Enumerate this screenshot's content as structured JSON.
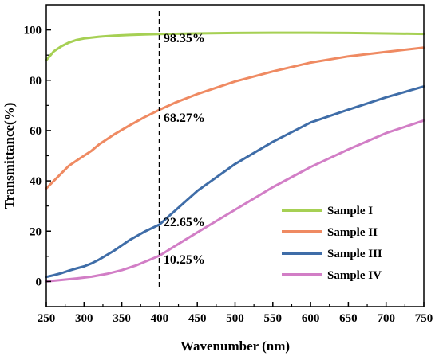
{
  "chart_data": {
    "type": "line",
    "title": "",
    "xlabel": "Wavenumber (nm)",
    "ylabel": "Transmittance(%)",
    "xlim": [
      250,
      750
    ],
    "ylim": [
      -10,
      110
    ],
    "xticks": [
      250,
      300,
      350,
      400,
      450,
      500,
      550,
      600,
      650,
      700,
      750
    ],
    "yticks": [
      0,
      20,
      40,
      60,
      80,
      100
    ],
    "grid": false,
    "legend_position": "bottom-right",
    "reference_line": {
      "x": 400,
      "style": "dashed",
      "color": "#000000"
    },
    "annotations": [
      {
        "text": "98.35%",
        "x": 400,
        "y": 98.35
      },
      {
        "text": "68.27%",
        "x": 400,
        "y": 68.27
      },
      {
        "text": "22.65%",
        "x": 400,
        "y": 22.65
      },
      {
        "text": "10.25%",
        "x": 400,
        "y": 10.25
      }
    ],
    "series": [
      {
        "name": "Sample I",
        "color": "#a6d054",
        "x": [
          250,
          260,
          270,
          280,
          290,
          300,
          320,
          340,
          360,
          380,
          400,
          450,
          500,
          550,
          600,
          650,
          700,
          750
        ],
        "values": [
          88,
          91.5,
          93.5,
          95,
          96,
          96.6,
          97.3,
          97.7,
          98,
          98.2,
          98.35,
          98.6,
          98.8,
          98.9,
          98.9,
          98.8,
          98.6,
          98.4
        ]
      },
      {
        "name": "Sample II",
        "color": "#ef8a62",
        "x": [
          250,
          260,
          270,
          280,
          290,
          300,
          310,
          320,
          340,
          360,
          380,
          400,
          420,
          450,
          500,
          550,
          600,
          650,
          700,
          750
        ],
        "values": [
          37,
          40,
          43,
          46,
          48,
          50,
          52,
          54.5,
          58.5,
          62,
          65.3,
          68.27,
          71,
          74.5,
          79.5,
          83.5,
          87,
          89.5,
          91.3,
          93
        ]
      },
      {
        "name": "Sample III",
        "color": "#3f6da8",
        "x": [
          250,
          260,
          270,
          280,
          290,
          300,
          310,
          320,
          340,
          360,
          380,
          400,
          420,
          450,
          500,
          550,
          600,
          650,
          700,
          750
        ],
        "values": [
          1.8,
          2.5,
          3.3,
          4.3,
          5.2,
          6,
          7.2,
          8.7,
          12.3,
          16.4,
          19.8,
          22.65,
          28,
          36,
          46.7,
          55.5,
          63.2,
          68.3,
          73.2,
          77.5
        ]
      },
      {
        "name": "Sample IV",
        "color": "#d27ec6",
        "x": [
          250,
          270,
          290,
          310,
          330,
          350,
          370,
          390,
          400,
          420,
          450,
          500,
          550,
          600,
          650,
          700,
          750
        ],
        "values": [
          0,
          0.6,
          1.2,
          1.9,
          3,
          4.5,
          6.5,
          9,
          10.25,
          14,
          19.5,
          28.5,
          37.5,
          45.5,
          52.5,
          59,
          64
        ]
      }
    ]
  }
}
